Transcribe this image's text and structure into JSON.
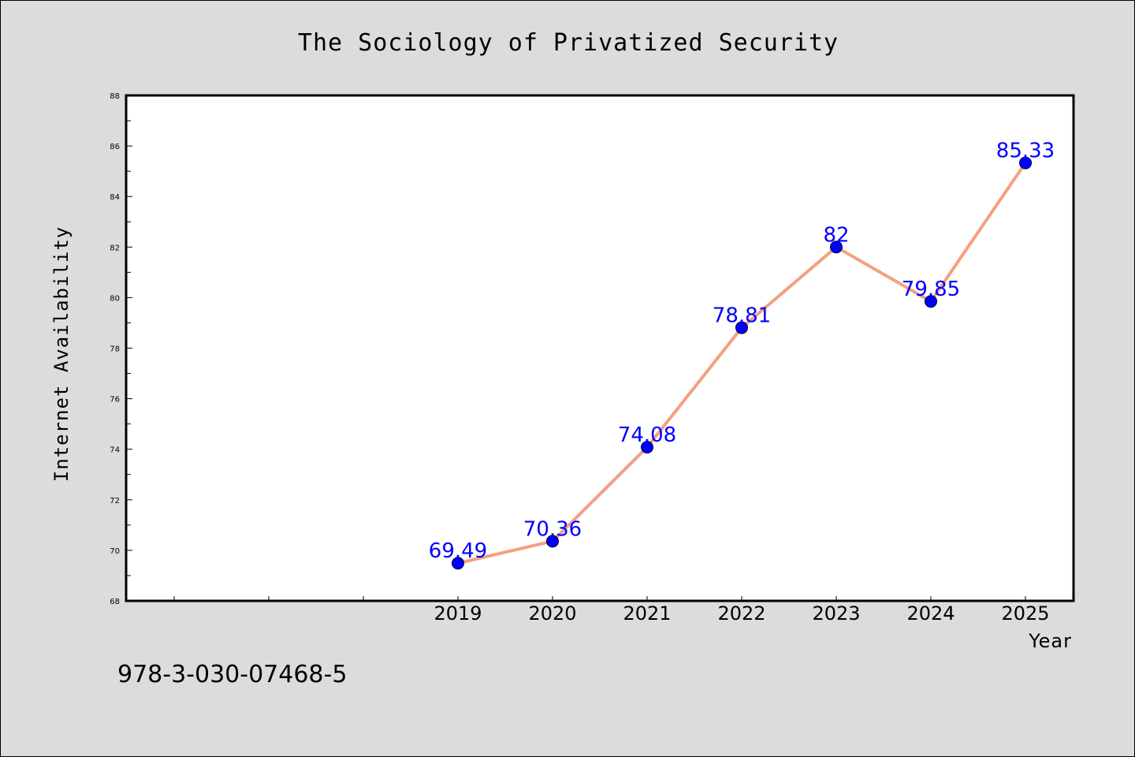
{
  "chart_data": {
    "type": "line",
    "title": "The Sociology of Privatized Security",
    "xlabel": "Year",
    "ylabel": "Internet Availability",
    "x": [
      "2019",
      "2020",
      "2021",
      "2022",
      "2023",
      "2024",
      "2025"
    ],
    "series": [
      {
        "values": [
          69.49,
          70.36,
          74.08,
          78.81,
          82,
          79.85,
          85.33
        ],
        "labels": [
          "69.49",
          "70.36",
          "74.08",
          "78.81",
          "82",
          "79.85",
          "85.33"
        ]
      }
    ],
    "ylim": [
      68,
      88
    ],
    "yticks": [
      "68",
      "70",
      "72",
      "74",
      "76",
      "78",
      "80",
      "82",
      "84",
      "86",
      "88"
    ],
    "line_color": "#f4a07f",
    "marker_color": "#0000ff",
    "label_color": "#0000ff",
    "grid": false,
    "legend": "none"
  },
  "footer": {
    "isbn": "978-3-030-07468-5"
  }
}
